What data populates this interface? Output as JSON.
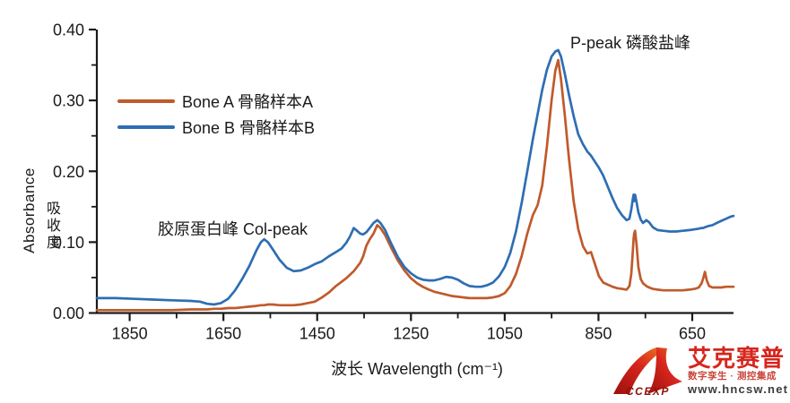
{
  "chart": {
    "type": "line",
    "x_axis": {
      "label": "波长 Wavelength (cm⁻¹)",
      "domain": [
        1920,
        562
      ],
      "major_ticks": [
        1850,
        1650,
        1450,
        1250,
        1050,
        850,
        650
      ],
      "minor_ticks": [
        1750,
        1550,
        1350,
        1150,
        950,
        750
      ],
      "reversed": true
    },
    "y_axis": {
      "label_en": "Absorbance",
      "label_cn": "吸收度",
      "domain": [
        0,
        0.4
      ],
      "major_ticks": [
        0.0,
        0.1,
        0.2,
        0.3,
        0.4
      ],
      "minor_ticks": [
        0.05,
        0.15,
        0.25,
        0.35
      ],
      "decimals": 2
    },
    "axis_color": "#1a1a1a",
    "x": [
      1920,
      1880,
      1840,
      1800,
      1760,
      1720,
      1700,
      1685,
      1670,
      1655,
      1640,
      1625,
      1610,
      1595,
      1580,
      1570,
      1563,
      1555,
      1545,
      1530,
      1515,
      1500,
      1485,
      1470,
      1455,
      1440,
      1425,
      1410,
      1398,
      1388,
      1380,
      1372,
      1365,
      1358,
      1352,
      1345,
      1338,
      1330,
      1322,
      1315,
      1305,
      1292,
      1278,
      1264,
      1250,
      1237,
      1225,
      1212,
      1200,
      1188,
      1175,
      1163,
      1150,
      1138,
      1125,
      1112,
      1100,
      1088,
      1075,
      1062,
      1050,
      1038,
      1026,
      1014,
      1002,
      990,
      980,
      970,
      960,
      950,
      942,
      936,
      930,
      922,
      913,
      903,
      893,
      883,
      874,
      866,
      858,
      849,
      840,
      830,
      820,
      810,
      800,
      790,
      784,
      780,
      777,
      775,
      774,
      772,
      769,
      765,
      760,
      755,
      748,
      742,
      734,
      724,
      712,
      698,
      684,
      670,
      656,
      645,
      636,
      630,
      627,
      623,
      619,
      614,
      607,
      598,
      588,
      578,
      568,
      562
    ],
    "series": [
      {
        "name": "Bone A 骨骼样本A",
        "color": "#c05a2c",
        "values": [
          0.004,
          0.004,
          0.004,
          0.004,
          0.004,
          0.005,
          0.005,
          0.005,
          0.006,
          0.006,
          0.007,
          0.007,
          0.008,
          0.009,
          0.01,
          0.011,
          0.011,
          0.012,
          0.012,
          0.011,
          0.011,
          0.011,
          0.012,
          0.014,
          0.016,
          0.022,
          0.029,
          0.038,
          0.044,
          0.049,
          0.054,
          0.059,
          0.065,
          0.071,
          0.08,
          0.095,
          0.104,
          0.112,
          0.124,
          0.12,
          0.11,
          0.092,
          0.074,
          0.06,
          0.049,
          0.042,
          0.037,
          0.033,
          0.03,
          0.028,
          0.026,
          0.024,
          0.023,
          0.022,
          0.021,
          0.021,
          0.021,
          0.021,
          0.022,
          0.024,
          0.028,
          0.038,
          0.055,
          0.08,
          0.112,
          0.138,
          0.152,
          0.18,
          0.235,
          0.3,
          0.342,
          0.357,
          0.33,
          0.28,
          0.218,
          0.158,
          0.118,
          0.094,
          0.084,
          0.086,
          0.07,
          0.052,
          0.043,
          0.04,
          0.037,
          0.035,
          0.034,
          0.033,
          0.038,
          0.055,
          0.085,
          0.105,
          0.112,
          0.116,
          0.098,
          0.065,
          0.048,
          0.042,
          0.038,
          0.036,
          0.034,
          0.033,
          0.032,
          0.032,
          0.032,
          0.032,
          0.033,
          0.034,
          0.036,
          0.042,
          0.048,
          0.058,
          0.046,
          0.038,
          0.036,
          0.036,
          0.036,
          0.037,
          0.037,
          0.037
        ]
      },
      {
        "name": "Bone B 骨骼样本B",
        "color": "#2e6eb2",
        "values": [
          0.021,
          0.021,
          0.02,
          0.019,
          0.018,
          0.017,
          0.016,
          0.013,
          0.012,
          0.014,
          0.02,
          0.032,
          0.048,
          0.066,
          0.088,
          0.1,
          0.104,
          0.1,
          0.09,
          0.075,
          0.064,
          0.059,
          0.06,
          0.064,
          0.069,
          0.073,
          0.08,
          0.086,
          0.091,
          0.099,
          0.108,
          0.12,
          0.116,
          0.112,
          0.111,
          0.114,
          0.12,
          0.127,
          0.131,
          0.127,
          0.117,
          0.098,
          0.079,
          0.065,
          0.056,
          0.05,
          0.047,
          0.046,
          0.046,
          0.048,
          0.051,
          0.05,
          0.047,
          0.042,
          0.038,
          0.037,
          0.037,
          0.039,
          0.043,
          0.052,
          0.065,
          0.085,
          0.115,
          0.155,
          0.2,
          0.245,
          0.28,
          0.315,
          0.343,
          0.362,
          0.369,
          0.371,
          0.362,
          0.338,
          0.308,
          0.278,
          0.252,
          0.238,
          0.228,
          0.222,
          0.214,
          0.205,
          0.194,
          0.178,
          0.162,
          0.148,
          0.138,
          0.131,
          0.133,
          0.146,
          0.16,
          0.167,
          0.158,
          0.167,
          0.157,
          0.142,
          0.132,
          0.127,
          0.131,
          0.128,
          0.121,
          0.117,
          0.116,
          0.115,
          0.115,
          0.116,
          0.117,
          0.118,
          0.119,
          0.12,
          0.12,
          0.121,
          0.122,
          0.123,
          0.124,
          0.127,
          0.13,
          0.133,
          0.136,
          0.137
        ]
      }
    ],
    "annotations": [
      {
        "text": "胶原蛋白峰 Col-peak"
      },
      {
        "text": "P-peak 磷酸盐峰"
      }
    ]
  },
  "logo": {
    "monogram": "CCEXP",
    "brand": "艾克赛普",
    "tagline": "数字孪生 · 测控集成",
    "url": "www.hncsw.net",
    "brand_color": "#d7251d",
    "tagline_color": "#c9453a"
  }
}
